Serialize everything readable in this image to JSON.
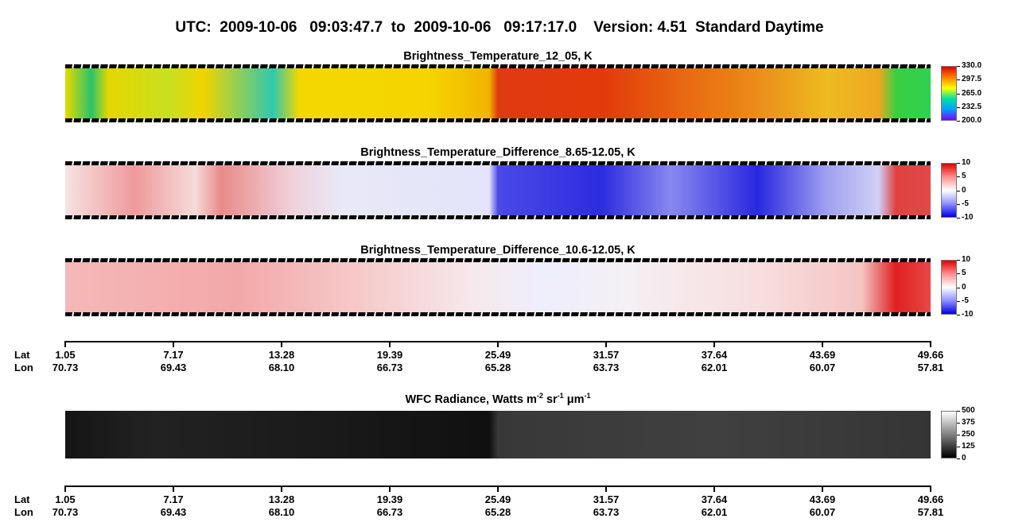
{
  "header": {
    "title": "UTC:  2009-10-06   09:03:47.7  to  2009-10-06   09:17:17.0    Version: 4.51  Standard Daytime"
  },
  "panels": [
    {
      "title": "Brightness_Temperature_12_05, K",
      "colorbar": [
        "330.0",
        "297.5",
        "265.0",
        "232.5",
        "200.0"
      ]
    },
    {
      "title": "Brightness_Temperature_Difference_8.65-12.05, K",
      "colorbar": [
        "10",
        "5",
        "0",
        "-5",
        "-10"
      ]
    },
    {
      "title": "Brightness_Temperature_Difference_10.6-12.05, K",
      "colorbar": [
        "10",
        "5",
        "0",
        "-5",
        "-10"
      ]
    },
    {
      "title_parts": [
        "WFC Radiance, Watts m",
        "-2",
        " sr",
        "-1",
        " μm",
        "-1"
      ],
      "colorbar": [
        "500",
        "375",
        "250",
        "125",
        "0"
      ]
    }
  ],
  "axes": [
    {
      "lat_label": "Lat",
      "lon_label": "Lon",
      "lat": [
        "1.05",
        "7.17",
        "13.28",
        "19.39",
        "25.49",
        "31.57",
        "37.64",
        "43.69",
        "49.66"
      ],
      "lon": [
        "70.73",
        "69.43",
        "68.10",
        "66.73",
        "65.28",
        "63.73",
        "62.01",
        "60.07",
        "57.81"
      ]
    },
    {
      "lat_label": "Lat",
      "lon_label": "Lon",
      "lat": [
        "1.05",
        "7.17",
        "13.28",
        "19.39",
        "25.49",
        "31.57",
        "37.64",
        "43.69",
        "49.66"
      ],
      "lon": [
        "70.73",
        "69.43",
        "68.10",
        "66.73",
        "65.28",
        "63.73",
        "62.01",
        "60.07",
        "57.81"
      ]
    }
  ]
}
